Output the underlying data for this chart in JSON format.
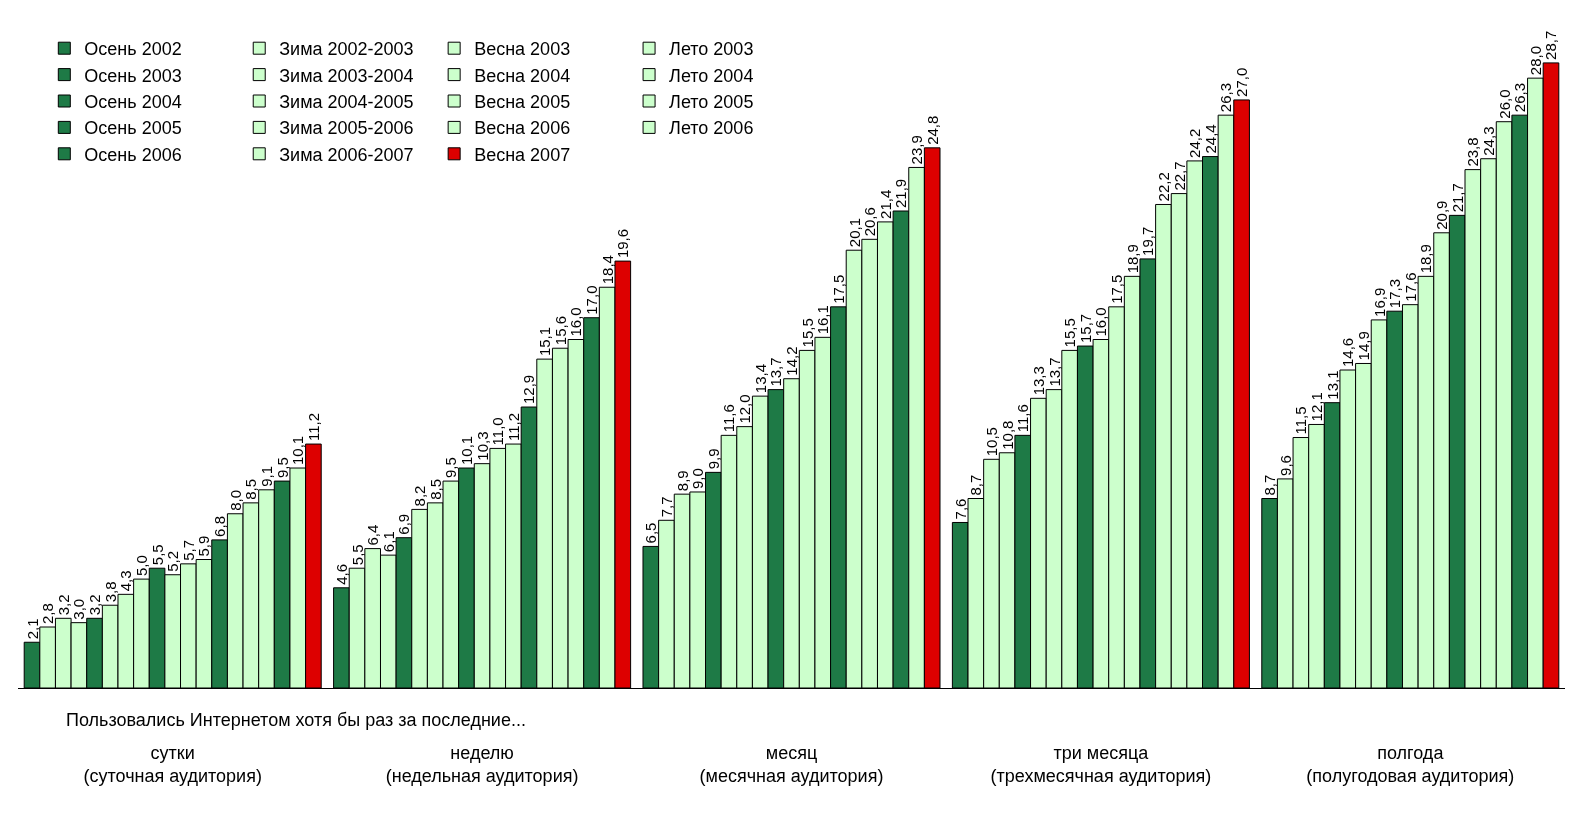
{
  "chart_data": {
    "type": "bar",
    "categories": [
      "сутки\n(суточная аудитория)",
      "неделю\n(недельная аудитория)",
      "месяц\n(месячная аудитория)",
      "три месяца\n(трехмесячная аудитория)",
      "полгода\n(полугодовая аудитория)"
    ],
    "annotations": [
      "Пользовались Интернетом хотя бы раз за последние..."
    ],
    "legend": "top left",
    "series": [
      {
        "name": "Осень 2002",
        "color": "#1e7a46",
        "values": [
          2.1,
          4.6,
          6.5,
          7.6,
          8.7
        ],
        "value_labels": [
          "2,1",
          "4,6",
          "6,5",
          "7,6",
          "8,7"
        ]
      },
      {
        "name": "Зима 2002-2003",
        "color": "#ccffcc",
        "values": [
          2.8,
          5.5,
          7.7,
          8.7,
          9.6
        ],
        "value_labels": [
          "2,8",
          "5,5",
          "7,7",
          "8,7",
          "9,6"
        ]
      },
      {
        "name": "Весна 2003",
        "color": "#ccffcc",
        "values": [
          3.2,
          6.4,
          8.9,
          10.5,
          11.5
        ],
        "value_labels": [
          "3,2",
          "6,4",
          "8,9",
          "10,5",
          "11,5"
        ]
      },
      {
        "name": "Лето 2003",
        "color": "#ccffcc",
        "values": [
          3.0,
          6.1,
          9.0,
          10.8,
          12.1
        ],
        "value_labels": [
          "3,0",
          "6,1",
          "9,0",
          "10,8",
          "12,1"
        ]
      },
      {
        "name": "Осень 2003",
        "color": "#1e7a46",
        "values": [
          3.2,
          6.9,
          9.9,
          11.6,
          13.1
        ],
        "value_labels": [
          "3,2",
          "6,9",
          "9,9",
          "11,6",
          "13,1"
        ]
      },
      {
        "name": "Зима 2003-2004",
        "color": "#ccffcc",
        "values": [
          3.8,
          8.2,
          11.6,
          13.3,
          14.6
        ],
        "value_labels": [
          "3,8",
          "8,2",
          "11,6",
          "13,3",
          "14,6"
        ]
      },
      {
        "name": "Весна 2004",
        "color": "#ccffcc",
        "values": [
          4.3,
          8.5,
          12.0,
          13.7,
          14.9
        ],
        "value_labels": [
          "4,3",
          "8,5",
          "12,0",
          "13,7",
          "14,9"
        ]
      },
      {
        "name": "Лето 2004",
        "color": "#ccffcc",
        "values": [
          5.0,
          9.5,
          13.4,
          15.5,
          16.9
        ],
        "value_labels": [
          "5,0",
          "9,5",
          "13,4",
          "15,5",
          "16,9"
        ]
      },
      {
        "name": "Осень 2004",
        "color": "#1e7a46",
        "values": [
          5.5,
          10.1,
          13.7,
          15.7,
          17.3
        ],
        "value_labels": [
          "5,5",
          "10,1",
          "13,7",
          "15,7",
          "17,3"
        ]
      },
      {
        "name": "Зима 2004-2005",
        "color": "#ccffcc",
        "values": [
          5.2,
          10.3,
          14.2,
          16.0,
          17.6
        ],
        "value_labels": [
          "5,2",
          "10,3",
          "14,2",
          "16,0",
          "17,6"
        ]
      },
      {
        "name": "Весна 2005",
        "color": "#ccffcc",
        "values": [
          5.7,
          11.0,
          15.5,
          17.5,
          18.9
        ],
        "value_labels": [
          "5,7",
          "11,0",
          "15,5",
          "17,5",
          "18,9"
        ]
      },
      {
        "name": "Лето 2005",
        "color": "#ccffcc",
        "values": [
          5.9,
          11.2,
          16.1,
          18.9,
          20.9
        ],
        "value_labels": [
          "5,9",
          "11,2",
          "16,1",
          "18,9",
          "20,9"
        ]
      },
      {
        "name": "Осень 2005",
        "color": "#1e7a46",
        "values": [
          6.8,
          12.9,
          17.5,
          19.7,
          21.7
        ],
        "value_labels": [
          "6,8",
          "12,9",
          "17,5",
          "19,7",
          "21,7"
        ]
      },
      {
        "name": "Зима 2005-2006",
        "color": "#ccffcc",
        "values": [
          8.0,
          15.1,
          20.1,
          22.2,
          23.8
        ],
        "value_labels": [
          "8,0",
          "15,1",
          "20,1",
          "22,2",
          "23,8"
        ]
      },
      {
        "name": "Весна 2006",
        "color": "#ccffcc",
        "values": [
          8.5,
          15.6,
          20.6,
          22.7,
          24.3
        ],
        "value_labels": [
          "8,5",
          "15,6",
          "20,6",
          "22,7",
          "24,3"
        ]
      },
      {
        "name": "Лето 2006",
        "color": "#ccffcc",
        "values": [
          9.1,
          16.0,
          21.4,
          24.2,
          26.0
        ],
        "value_labels": [
          "9,1",
          "16,0",
          "21,4",
          "24,2",
          "26,0"
        ]
      },
      {
        "name": "Осень 2006",
        "color": "#1e7a46",
        "values": [
          9.5,
          17.0,
          21.9,
          24.4,
          26.3
        ],
        "value_labels": [
          "9,5",
          "17,0",
          "21,9",
          "24,4",
          "26,3"
        ]
      },
      {
        "name": "Зима 2006-2007",
        "color": "#ccffcc",
        "values": [
          10.1,
          18.4,
          23.9,
          26.3,
          28.0
        ],
        "value_labels": [
          "10,1",
          "18,4",
          "23,9",
          "26,3",
          "28,0"
        ]
      },
      {
        "name": "Весна 2007",
        "color": "#dd0000",
        "values": [
          11.2,
          19.6,
          24.8,
          27.0,
          28.7
        ],
        "value_labels": [
          "11,2",
          "19,6",
          "24,8",
          "27,0",
          "28,7"
        ]
      }
    ]
  }
}
